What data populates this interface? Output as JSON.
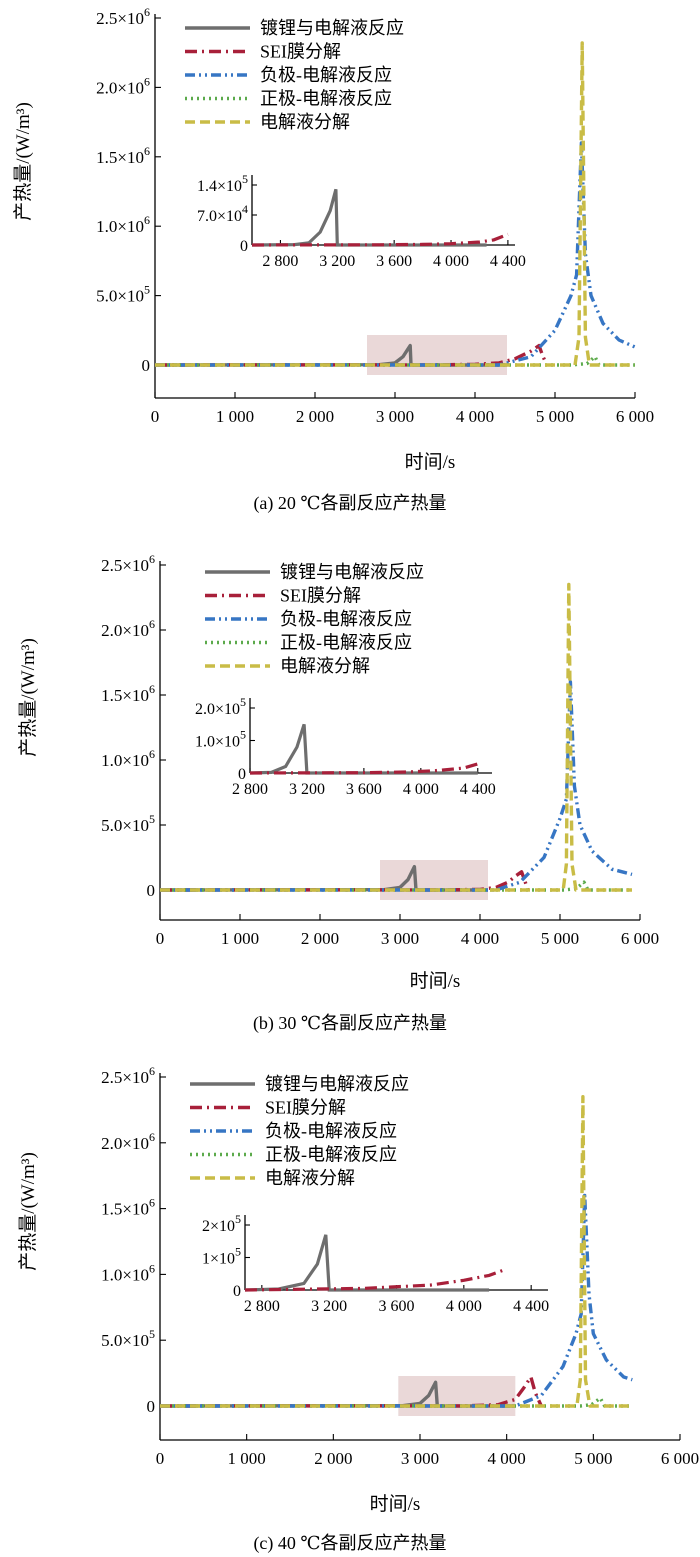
{
  "figure": {
    "legend_order": [
      "plating",
      "sei",
      "anode",
      "cathode",
      "electrolyte"
    ]
  },
  "series_styles": {
    "plating": {
      "name": "镀锂与电解液反应",
      "color": "#6e6e6e",
      "dash": ""
    },
    "sei": {
      "name": "SEI膜分解",
      "color": "#a8203a",
      "dash": "12,5,2,5"
    },
    "anode": {
      "name": "负极-电解液反应",
      "color": "#3776c4",
      "dash": "10,4,2,4,2,4"
    },
    "cathode": {
      "name": "正极-电解液反应",
      "color": "#5caa4c",
      "dash": "2,4"
    },
    "electrolyte": {
      "name": "电解液分解",
      "color": "#c9bc46",
      "dash": "10,5"
    }
  },
  "chart_data": [
    {
      "type": "line",
      "caption": "(a) 20 ℃各副反应产热量",
      "xlabel": "时间/s",
      "ylabel": "产热量/(W/m³)",
      "xlim": [
        0,
        6000
      ],
      "ylim": [
        0,
        2500000
      ],
      "xticks": [
        0,
        1000,
        2000,
        3000,
        4000,
        5000,
        6000
      ],
      "xtick_labels": [
        "0",
        "1 000",
        "2 000",
        "3 000",
        "4 000",
        "5 000",
        "6 000"
      ],
      "yticks": [
        0,
        500000,
        1000000,
        1500000,
        2000000,
        2500000
      ],
      "ytick_labels": [
        {
          "mantissa": "0",
          "exp": ""
        },
        {
          "mantissa": "5.0×10",
          "exp": "5"
        },
        {
          "mantissa": "1.0×10",
          "exp": "6"
        },
        {
          "mantissa": "1.5×10",
          "exp": "6"
        },
        {
          "mantissa": "2.0×10",
          "exp": "6"
        },
        {
          "mantissa": "2.5×10",
          "exp": "6"
        }
      ],
      "highlight_x": [
        2650,
        4400
      ],
      "series": {
        "plating": {
          "x": [
            0,
            2800,
            3000,
            3100,
            3190,
            3200,
            4400
          ],
          "y": [
            0,
            2000,
            15000,
            60000,
            140000,
            0,
            0
          ]
        },
        "sei": {
          "x": [
            0,
            3500,
            4000,
            4300,
            4500,
            4700,
            4800,
            4850,
            4900
          ],
          "y": [
            0,
            1000,
            5000,
            15000,
            45000,
            100000,
            140000,
            60000,
            0
          ]
        },
        "anode": {
          "x": [
            0,
            4300,
            4700,
            5000,
            5200,
            5270,
            5330,
            5380,
            5450,
            5600,
            5800,
            6000
          ],
          "y": [
            0,
            0,
            60000,
            250000,
            500000,
            650000,
            1600000,
            800000,
            500000,
            300000,
            180000,
            130000
          ]
        },
        "cathode": {
          "x": [
            0,
            5200,
            5400,
            5450,
            5500,
            5550,
            6000
          ],
          "y": [
            0,
            0,
            10000,
            35000,
            60000,
            0,
            0
          ]
        },
        "electrolyte": {
          "x": [
            0,
            5250,
            5300,
            5340,
            5380,
            5430,
            6000
          ],
          "y": [
            0,
            0,
            200000,
            2320000,
            200000,
            0,
            0
          ]
        }
      },
      "inset": {
        "xlim": [
          2600,
          4450
        ],
        "ylim": [
          0,
          140000
        ],
        "xticks": [
          2800,
          3200,
          3600,
          4000,
          4400
        ],
        "xtick_labels": [
          "2 800",
          "3 200",
          "3 600",
          "4 000",
          "4 400"
        ],
        "yticks": [
          0,
          70000,
          140000
        ],
        "ytick_labels": [
          {
            "mantissa": "0",
            "exp": ""
          },
          {
            "mantissa": "7.0×10",
            "exp": "4"
          },
          {
            "mantissa": "1.4×10",
            "exp": "5"
          }
        ],
        "series": {
          "plating": {
            "x": [
              2600,
              2900,
              3000,
              3080,
              3150,
              3190,
              3200,
              4250
            ],
            "y": [
              0,
              1000,
              5000,
              30000,
              80000,
              130000,
              0,
              0
            ]
          },
          "sei": {
            "x": [
              2600,
              3500,
              3800,
              4000,
              4200,
              4300,
              4400
            ],
            "y": [
              0,
              500,
              1500,
              3000,
              7000,
              12000,
              25000
            ]
          }
        }
      }
    },
    {
      "type": "line",
      "caption": "(b) 30 ℃各副反应产热量",
      "xlabel": "时间/s",
      "ylabel": "产热量/(W/m³)",
      "xlim": [
        0,
        6000
      ],
      "ylim": [
        0,
        2500000
      ],
      "xticks": [
        0,
        1000,
        2000,
        3000,
        4000,
        5000,
        6000
      ],
      "xtick_labels": [
        "0",
        "1 000",
        "2 000",
        "3 000",
        "4 000",
        "5 000",
        "6 000"
      ],
      "yticks": [
        0,
        500000,
        1000000,
        1500000,
        2000000,
        2500000
      ],
      "ytick_labels": [
        {
          "mantissa": "0",
          "exp": ""
        },
        {
          "mantissa": "5.0×10",
          "exp": "5"
        },
        {
          "mantissa": "1.0×10",
          "exp": "6"
        },
        {
          "mantissa": "1.5×10",
          "exp": "6"
        },
        {
          "mantissa": "2.0×10",
          "exp": "6"
        },
        {
          "mantissa": "2.5×10",
          "exp": "6"
        }
      ],
      "highlight_x": [
        2750,
        4100
      ],
      "series": {
        "plating": {
          "x": [
            0,
            2800,
            3000,
            3100,
            3180,
            3200,
            4100
          ],
          "y": [
            0,
            2000,
            20000,
            80000,
            180000,
            0,
            0
          ]
        },
        "sei": {
          "x": [
            0,
            3500,
            4000,
            4200,
            4350,
            4450,
            4520,
            4600
          ],
          "y": [
            0,
            1000,
            5000,
            20000,
            60000,
            110000,
            140000,
            0
          ]
        },
        "anode": {
          "x": [
            0,
            4200,
            4500,
            4800,
            5000,
            5080,
            5130,
            5180,
            5250,
            5400,
            5650,
            5900
          ],
          "y": [
            0,
            0,
            60000,
            250000,
            550000,
            700000,
            1600000,
            800000,
            500000,
            300000,
            160000,
            120000
          ]
        },
        "cathode": {
          "x": [
            0,
            5050,
            5200,
            5250,
            5300,
            5350,
            5900
          ],
          "y": [
            0,
            0,
            10000,
            35000,
            60000,
            0,
            0
          ]
        },
        "electrolyte": {
          "x": [
            0,
            5040,
            5080,
            5110,
            5150,
            5200,
            5900
          ],
          "y": [
            0,
            0,
            200000,
            2350000,
            200000,
            0,
            0
          ]
        }
      },
      "inset": {
        "xlim": [
          2800,
          4500
        ],
        "ylim": [
          0,
          200000
        ],
        "xticks": [
          2800,
          3200,
          3600,
          4000,
          4400
        ],
        "xtick_labels": [
          "2 800",
          "3 200",
          "3 600",
          "4 000",
          "4 400"
        ],
        "yticks": [
          0,
          100000,
          200000
        ],
        "ytick_labels": [
          {
            "mantissa": "0",
            "exp": ""
          },
          {
            "mantissa": "1.0×10",
            "exp": "5"
          },
          {
            "mantissa": "2.0×10",
            "exp": "5"
          }
        ],
        "series": {
          "plating": {
            "x": [
              2800,
              2950,
              3050,
              3130,
              3180,
              3200,
              4400
            ],
            "y": [
              0,
              2000,
              20000,
              80000,
              150000,
              0,
              0
            ]
          },
          "sei": {
            "x": [
              2800,
              3600,
              3900,
              4100,
              4300,
              4400
            ],
            "y": [
              0,
              1000,
              3000,
              7000,
              15000,
              28000
            ]
          }
        }
      }
    },
    {
      "type": "line",
      "caption": "(c) 40 ℃各副反应产热量",
      "xlabel": "时间/s",
      "ylabel": "产热量/(W/m³)",
      "xlim": [
        0,
        6000
      ],
      "ylim": [
        0,
        2500000
      ],
      "xticks": [
        0,
        1000,
        2000,
        3000,
        4000,
        5000,
        6000
      ],
      "xtick_labels": [
        "0",
        "1 000",
        "2 000",
        "3 000",
        "4 000",
        "5 000",
        "6 000"
      ],
      "yticks": [
        0,
        500000,
        1000000,
        1500000,
        2000000,
        2500000
      ],
      "ytick_labels": [
        {
          "mantissa": "0",
          "exp": ""
        },
        {
          "mantissa": "5.0×10",
          "exp": "5"
        },
        {
          "mantissa": "1.0×10",
          "exp": "6"
        },
        {
          "mantissa": "1.5×10",
          "exp": "6"
        },
        {
          "mantissa": "2.0×10",
          "exp": "6"
        },
        {
          "mantissa": "2.5×10",
          "exp": "6"
        }
      ],
      "highlight_x": [
        2750,
        4100
      ],
      "series": {
        "plating": {
          "x": [
            0,
            2800,
            3000,
            3100,
            3180,
            3200,
            4100
          ],
          "y": [
            0,
            2000,
            20000,
            80000,
            180000,
            0,
            0
          ]
        },
        "sei": {
          "x": [
            0,
            3500,
            3900,
            4100,
            4200,
            4280,
            4330,
            4400
          ],
          "y": [
            0,
            1000,
            10000,
            50000,
            140000,
            220000,
            100000,
            0
          ]
        },
        "anode": {
          "x": [
            0,
            4100,
            4400,
            4650,
            4800,
            4860,
            4900,
            4950,
            5000,
            5150,
            5350,
            5450
          ],
          "y": [
            0,
            0,
            80000,
            300000,
            550000,
            700000,
            1600000,
            850000,
            550000,
            350000,
            220000,
            200000
          ]
        },
        "cathode": {
          "x": [
            0,
            4850,
            4980,
            5030,
            5080,
            5130,
            5450
          ],
          "y": [
            0,
            0,
            10000,
            35000,
            60000,
            0,
            0
          ]
        },
        "electrolyte": {
          "x": [
            0,
            4810,
            4850,
            4880,
            4910,
            4960,
            5450
          ],
          "y": [
            0,
            0,
            200000,
            2350000,
            200000,
            0,
            0
          ]
        }
      },
      "inset": {
        "xlim": [
          2700,
          4500
        ],
        "ylim": [
          0,
          200000
        ],
        "xticks": [
          2800,
          3200,
          3600,
          4000,
          4400
        ],
        "xtick_labels": [
          "2 800",
          "3 200",
          "3 600",
          "4 000",
          "4 400"
        ],
        "yticks": [
          0,
          100000,
          200000
        ],
        "ytick_labels": [
          {
            "mantissa": "0",
            "exp": ""
          },
          {
            "mantissa": "1×10",
            "exp": "5"
          },
          {
            "mantissa": "2×10",
            "exp": "5"
          }
        ],
        "series": {
          "plating": {
            "x": [
              2700,
              2900,
              3050,
              3130,
              3180,
              3200,
              4150
            ],
            "y": [
              0,
              3000,
              20000,
              80000,
              170000,
              0,
              0
            ]
          },
          "sei": {
            "x": [
              2700,
              3400,
              3800,
              4000,
              4150,
              4230
            ],
            "y": [
              0,
              5000,
              15000,
              30000,
              45000,
              60000
            ]
          }
        }
      }
    }
  ]
}
